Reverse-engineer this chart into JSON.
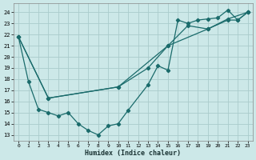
{
  "xlabel": "Humidex (Indice chaleur)",
  "bg_color": "#cce8e8",
  "grid_color": "#aacccc",
  "line_color": "#1a6b6b",
  "xlim": [
    -0.5,
    23.5
  ],
  "ylim": [
    12.5,
    24.8
  ],
  "yticks": [
    13,
    14,
    15,
    16,
    17,
    18,
    19,
    20,
    21,
    22,
    23,
    24
  ],
  "xticks": [
    0,
    1,
    2,
    3,
    4,
    5,
    6,
    7,
    8,
    9,
    10,
    11,
    12,
    13,
    14,
    15,
    16,
    17,
    18,
    19,
    20,
    21,
    22,
    23
  ],
  "line1_x": [
    0,
    1,
    2,
    3,
    4,
    5,
    6,
    7,
    8,
    9,
    10,
    11,
    13,
    14,
    15,
    16,
    17,
    18,
    19,
    20,
    21,
    22,
    23
  ],
  "line1_y": [
    21.8,
    17.8,
    15.3,
    15.0,
    14.7,
    15.0,
    14.0,
    13.4,
    13.0,
    13.8,
    14.0,
    15.2,
    17.5,
    19.2,
    18.8,
    23.3,
    23.0,
    23.3,
    23.4,
    23.5,
    24.2,
    23.3,
    24.0
  ],
  "line2_x": [
    0,
    3,
    10,
    13,
    15,
    17,
    19,
    21,
    23
  ],
  "line2_y": [
    21.8,
    16.3,
    17.3,
    19.0,
    21.0,
    22.8,
    22.5,
    23.4,
    24.0
  ],
  "line3_x": [
    0,
    3,
    10,
    15,
    19,
    21,
    22,
    23
  ],
  "line3_y": [
    21.8,
    16.3,
    17.3,
    21.0,
    22.5,
    23.3,
    23.3,
    24.0
  ]
}
